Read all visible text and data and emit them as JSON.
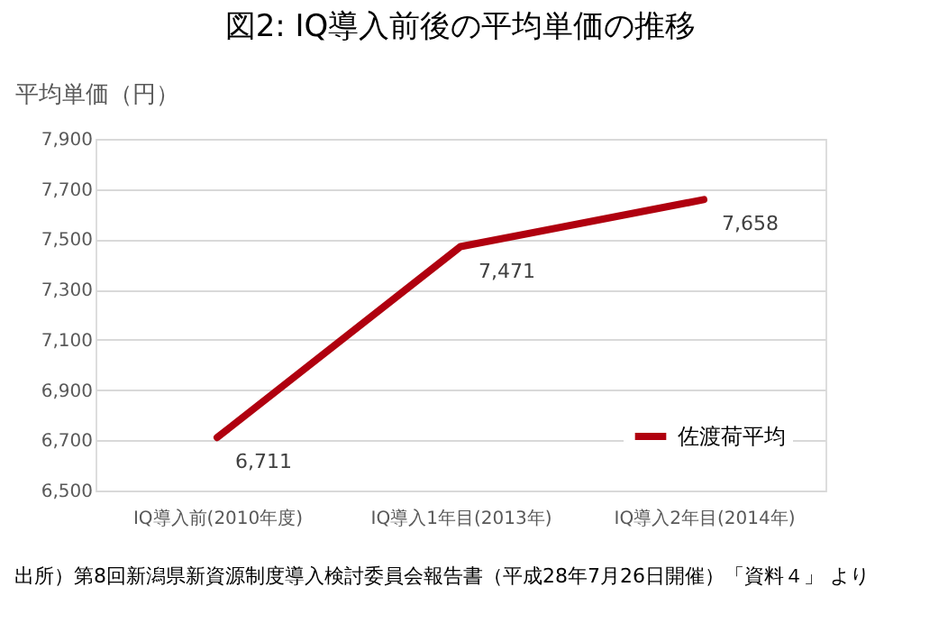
{
  "chart_data": {
    "type": "line",
    "title": "図2: IQ導入前後の平均単価の推移",
    "ylabel": "平均単価（円）",
    "categories": [
      "IQ導入前(2010年度)",
      "IQ導入1年目(2013年)",
      "IQ導入2年目(2014年)"
    ],
    "series": [
      {
        "name": "佐渡荷平均",
        "color": "#b0000f",
        "values": [
          6711,
          7471,
          7658
        ],
        "value_labels": [
          "6,711",
          "7,471",
          "7,658"
        ]
      }
    ],
    "ylim": [
      6500,
      7900
    ],
    "yticks": [
      {
        "value": 6500,
        "label": "6,500"
      },
      {
        "value": 6700,
        "label": "6,700"
      },
      {
        "value": 6900,
        "label": "6,900"
      },
      {
        "value": 7100,
        "label": "7,100"
      },
      {
        "value": 7300,
        "label": "7,300"
      },
      {
        "value": 7500,
        "label": "7,500"
      },
      {
        "value": 7700,
        "label": "7,700"
      },
      {
        "value": 7900,
        "label": "7,900"
      }
    ],
    "grid": "y",
    "legend": "bottom right",
    "marker": "none",
    "line_style": "solid",
    "annotations": [
      "出所）第8回新潟県新資源制度導入検討委員会報告書（平成28年7月26日開催）「資料４」 より"
    ]
  }
}
